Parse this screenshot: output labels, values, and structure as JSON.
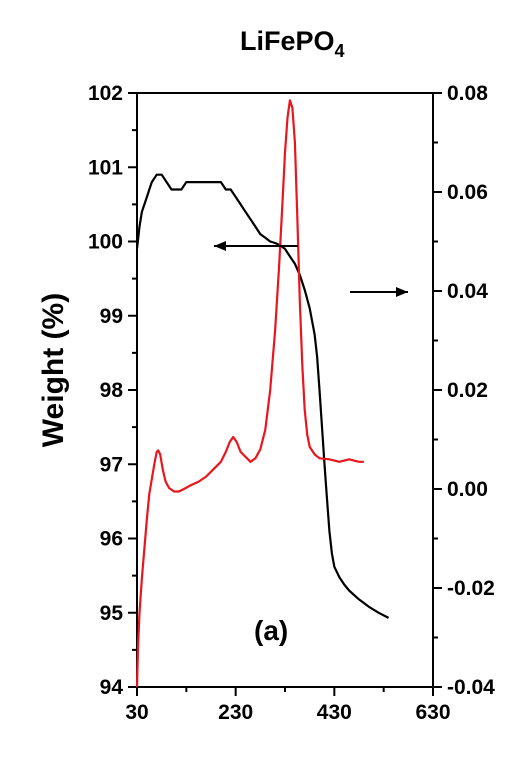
{
  "chart_data": {
    "type": "line",
    "title": "LiFePO",
    "title_subscript": "4",
    "ylabel": "Weight (%)",
    "panel_label": "(a)",
    "xlim": [
      30,
      630
    ],
    "xticks": [
      30,
      230,
      430,
      630
    ],
    "ylim_left": [
      94,
      102
    ],
    "yticks_left": [
      94,
      95,
      96,
      97,
      98,
      99,
      100,
      101,
      102
    ],
    "ylim_right": [
      -0.04,
      0.08
    ],
    "yticks_right": [
      "-0.04",
      "-0.02",
      "0.00",
      "0.02",
      "0.04",
      "0.06",
      "0.08"
    ],
    "series": [
      {
        "axis": "left",
        "color": "#000000",
        "points": [
          [
            30,
            99.9
          ],
          [
            35,
            100.2
          ],
          [
            40,
            100.4
          ],
          [
            45,
            100.5
          ],
          [
            50,
            100.6
          ],
          [
            55,
            100.7
          ],
          [
            60,
            100.8
          ],
          [
            70,
            100.9
          ],
          [
            80,
            100.9
          ],
          [
            90,
            100.8
          ],
          [
            100,
            100.7
          ],
          [
            120,
            100.7
          ],
          [
            130,
            100.8
          ],
          [
            200,
            100.8
          ],
          [
            210,
            100.7
          ],
          [
            220,
            100.7
          ],
          [
            230,
            100.6
          ],
          [
            240,
            100.5
          ],
          [
            250,
            100.4
          ],
          [
            260,
            100.3
          ],
          [
            270,
            100.2
          ],
          [
            280,
            100.1
          ],
          [
            290,
            100.05
          ],
          [
            300,
            100.0
          ],
          [
            310,
            99.98
          ],
          [
            320,
            99.95
          ],
          [
            330,
            99.9
          ],
          [
            340,
            99.8
          ],
          [
            350,
            99.7
          ],
          [
            360,
            99.55
          ],
          [
            370,
            99.35
          ],
          [
            380,
            99.1
          ],
          [
            390,
            98.75
          ],
          [
            395,
            98.45
          ],
          [
            400,
            98.0
          ],
          [
            405,
            97.5
          ],
          [
            410,
            97.0
          ],
          [
            415,
            96.55
          ],
          [
            420,
            96.1
          ],
          [
            425,
            95.8
          ],
          [
            430,
            95.62
          ],
          [
            440,
            95.48
          ],
          [
            450,
            95.38
          ],
          [
            460,
            95.3
          ],
          [
            480,
            95.18
          ],
          [
            500,
            95.08
          ],
          [
            520,
            95.0
          ],
          [
            540,
            94.93
          ]
        ]
      },
      {
        "axis": "right",
        "color": "#e8161d",
        "points": [
          [
            30,
            -0.04
          ],
          [
            32,
            -0.032
          ],
          [
            35,
            -0.025
          ],
          [
            40,
            -0.018
          ],
          [
            45,
            -0.012
          ],
          [
            50,
            -0.006
          ],
          [
            55,
            -0.001
          ],
          [
            60,
            0.002
          ],
          [
            65,
            0.005
          ],
          [
            70,
            0.0075
          ],
          [
            73,
            0.0078
          ],
          [
            77,
            0.007
          ],
          [
            82,
            0.004
          ],
          [
            88,
            0.0015
          ],
          [
            95,
            0.0002
          ],
          [
            105,
            -0.0005
          ],
          [
            115,
            -0.0005
          ],
          [
            125,
            0.0
          ],
          [
            140,
            0.0008
          ],
          [
            155,
            0.0015
          ],
          [
            170,
            0.0025
          ],
          [
            185,
            0.004
          ],
          [
            200,
            0.0055
          ],
          [
            210,
            0.0075
          ],
          [
            218,
            0.0095
          ],
          [
            225,
            0.0105
          ],
          [
            232,
            0.0095
          ],
          [
            240,
            0.0075
          ],
          [
            250,
            0.0065
          ],
          [
            260,
            0.0055
          ],
          [
            270,
            0.0062
          ],
          [
            280,
            0.008
          ],
          [
            290,
            0.012
          ],
          [
            300,
            0.02
          ],
          [
            310,
            0.032
          ],
          [
            318,
            0.045
          ],
          [
            325,
            0.058
          ],
          [
            330,
            0.068
          ],
          [
            335,
            0.075
          ],
          [
            340,
            0.0785
          ],
          [
            345,
            0.077
          ],
          [
            350,
            0.07
          ],
          [
            355,
            0.055
          ],
          [
            360,
            0.038
          ],
          [
            365,
            0.025
          ],
          [
            370,
            0.016
          ],
          [
            375,
            0.011
          ],
          [
            380,
            0.0085
          ],
          [
            390,
            0.007
          ],
          [
            400,
            0.0062
          ],
          [
            420,
            0.006
          ],
          [
            440,
            0.0055
          ],
          [
            460,
            0.006
          ],
          [
            480,
            0.0055
          ],
          [
            490,
            0.0055
          ]
        ]
      }
    ],
    "annotations": [
      {
        "text": "←",
        "points_to": "left axis"
      },
      {
        "text": "→",
        "points_to": "right axis"
      }
    ]
  }
}
